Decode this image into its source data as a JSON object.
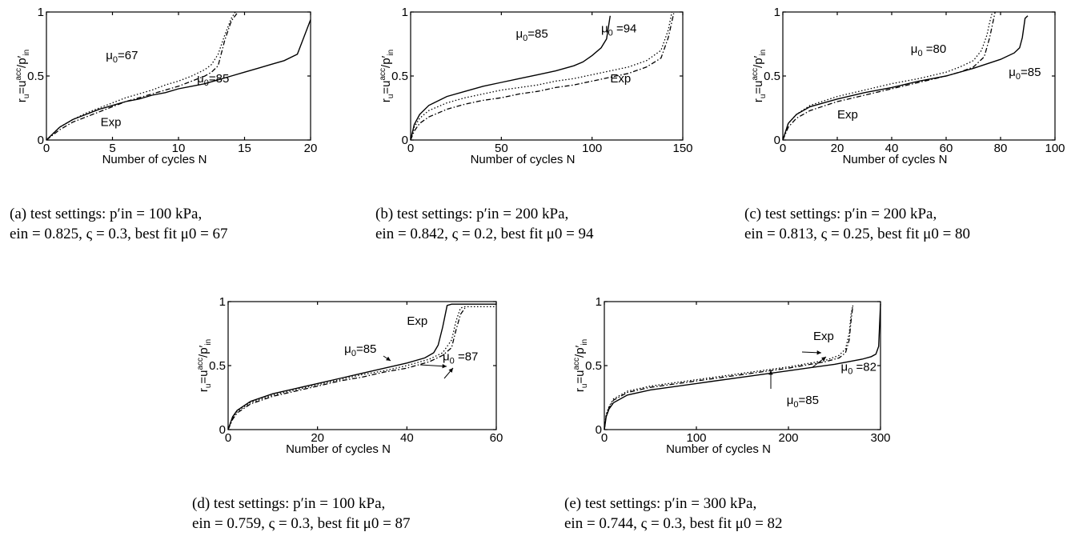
{
  "chart_data": [
    {
      "id": "a",
      "type": "line",
      "xlabel": "Number of cycles N",
      "ylabel": "r_u=u^acc/p'_in",
      "xlim": [
        0,
        20
      ],
      "ylim": [
        0,
        1
      ],
      "xticks": [
        0,
        5,
        10,
        15,
        20
      ],
      "yticks": [
        0,
        0.5,
        1
      ],
      "series": [
        {
          "style": "solid",
          "x": [
            0,
            1,
            2,
            3,
            4,
            5,
            6,
            7,
            8,
            9,
            10,
            11,
            12,
            13,
            14,
            15,
            16,
            17,
            18,
            19,
            20
          ],
          "y": [
            0,
            0.1,
            0.16,
            0.2,
            0.24,
            0.27,
            0.3,
            0.32,
            0.35,
            0.37,
            0.4,
            0.42,
            0.44,
            0.47,
            0.5,
            0.53,
            0.56,
            0.59,
            0.62,
            0.67,
            0.94
          ]
        },
        {
          "style": "dotted",
          "x": [
            0,
            1,
            2,
            3,
            4,
            5,
            6,
            7,
            8,
            9,
            10,
            11,
            12,
            12.5,
            13,
            13.5,
            14,
            14.3
          ],
          "y": [
            0,
            0.1,
            0.16,
            0.21,
            0.25,
            0.29,
            0.33,
            0.36,
            0.39,
            0.43,
            0.46,
            0.5,
            0.55,
            0.59,
            0.67,
            0.82,
            0.95,
            1.0
          ]
        },
        {
          "style": "dashdot",
          "x": [
            0,
            1,
            2,
            3,
            4,
            5,
            6,
            7,
            8,
            9,
            10,
            11,
            12,
            12.5,
            13,
            13.5,
            14,
            14.5
          ],
          "y": [
            0,
            0.08,
            0.14,
            0.18,
            0.22,
            0.26,
            0.3,
            0.33,
            0.36,
            0.39,
            0.42,
            0.46,
            0.5,
            0.53,
            0.58,
            0.78,
            0.93,
            1.0
          ]
        }
      ],
      "annotations": [
        {
          "text": "μ0=67",
          "x": 4.5,
          "y": 0.63
        },
        {
          "text": "μ0=85",
          "x": 11.4,
          "y": 0.45
        },
        {
          "text": "Exp",
          "x": 4.1,
          "y": 0.11
        }
      ]
    },
    {
      "id": "b",
      "type": "line",
      "xlabel": "Number of cycles N",
      "ylabel": "r_u=u^acc/p'_in",
      "xlim": [
        0,
        150
      ],
      "ylim": [
        0,
        1
      ],
      "xticks": [
        0,
        50,
        100,
        150
      ],
      "yticks": [
        0,
        0.5,
        1
      ],
      "series": [
        {
          "style": "solid",
          "x": [
            0,
            2,
            5,
            10,
            20,
            30,
            40,
            50,
            60,
            70,
            80,
            90,
            95,
            100,
            105,
            108,
            110
          ],
          "y": [
            0,
            0.12,
            0.2,
            0.27,
            0.34,
            0.38,
            0.42,
            0.45,
            0.48,
            0.51,
            0.54,
            0.58,
            0.61,
            0.66,
            0.72,
            0.79,
            0.97
          ]
        },
        {
          "style": "dotted",
          "x": [
            0,
            2,
            5,
            10,
            20,
            30,
            40,
            50,
            60,
            70,
            80,
            90,
            100,
            110,
            120,
            130,
            138,
            142,
            144
          ],
          "y": [
            0,
            0.1,
            0.17,
            0.23,
            0.29,
            0.33,
            0.36,
            0.39,
            0.41,
            0.43,
            0.46,
            0.48,
            0.51,
            0.54,
            0.57,
            0.62,
            0.7,
            0.86,
            1.0
          ]
        },
        {
          "style": "dashdot",
          "x": [
            0,
            2,
            5,
            10,
            20,
            30,
            40,
            50,
            60,
            70,
            80,
            90,
            100,
            110,
            120,
            130,
            138,
            142,
            145
          ],
          "y": [
            0,
            0.07,
            0.13,
            0.18,
            0.24,
            0.28,
            0.31,
            0.33,
            0.36,
            0.38,
            0.41,
            0.43,
            0.46,
            0.49,
            0.52,
            0.57,
            0.64,
            0.8,
            0.99
          ]
        }
      ],
      "annotations": [
        {
          "text": "μ0=85",
          "x": 58,
          "y": 0.8
        },
        {
          "text": "μ0 =94",
          "x": 105,
          "y": 0.84
        },
        {
          "text": "Exp",
          "x": 110,
          "y": 0.45
        }
      ]
    },
    {
      "id": "c",
      "type": "line",
      "xlabel": "Number of cycles N",
      "ylabel": "r_u=u^acc/p'_in",
      "xlim": [
        0,
        100
      ],
      "ylim": [
        0,
        1
      ],
      "xticks": [
        0,
        20,
        40,
        60,
        80,
        100
      ],
      "yticks": [
        0,
        0.5,
        1
      ],
      "series": [
        {
          "style": "solid",
          "x": [
            0,
            2,
            5,
            10,
            20,
            30,
            40,
            50,
            60,
            70,
            80,
            85,
            87,
            88,
            89,
            90
          ],
          "y": [
            0,
            0.13,
            0.2,
            0.26,
            0.32,
            0.37,
            0.41,
            0.46,
            0.5,
            0.56,
            0.63,
            0.68,
            0.72,
            0.8,
            0.95,
            0.97
          ]
        },
        {
          "style": "dotted",
          "x": [
            0,
            2,
            5,
            10,
            20,
            30,
            40,
            50,
            60,
            65,
            70,
            73,
            75,
            76,
            77
          ],
          "y": [
            0,
            0.13,
            0.2,
            0.27,
            0.34,
            0.39,
            0.44,
            0.48,
            0.53,
            0.57,
            0.62,
            0.7,
            0.82,
            0.92,
            1.0
          ]
        },
        {
          "style": "dashdot",
          "x": [
            0,
            2,
            5,
            10,
            20,
            30,
            40,
            50,
            60,
            65,
            70,
            74,
            76,
            77,
            78
          ],
          "y": [
            0,
            0.1,
            0.17,
            0.23,
            0.3,
            0.35,
            0.4,
            0.45,
            0.5,
            0.53,
            0.57,
            0.65,
            0.8,
            0.9,
            1.0
          ]
        }
      ],
      "annotations": [
        {
          "text": "μ0 =80",
          "x": 47,
          "y": 0.68
        },
        {
          "text": "μ0=85",
          "x": 83,
          "y": 0.5
        },
        {
          "text": "Exp",
          "x": 20,
          "y": 0.17
        }
      ]
    },
    {
      "id": "d",
      "type": "line",
      "xlabel": "Number of cycles N",
      "ylabel": "r_u=u^acc/p'_in",
      "xlim": [
        0,
        60
      ],
      "ylim": [
        0,
        1
      ],
      "xticks": [
        0,
        20,
        40,
        60
      ],
      "yticks": [
        0,
        0.5,
        1
      ],
      "series": [
        {
          "style": "solid",
          "x": [
            0,
            1,
            2,
            5,
            10,
            15,
            20,
            25,
            30,
            35,
            40,
            44,
            46,
            47,
            48,
            49,
            50,
            55,
            60
          ],
          "y": [
            0,
            0.1,
            0.15,
            0.22,
            0.28,
            0.32,
            0.36,
            0.4,
            0.44,
            0.48,
            0.52,
            0.56,
            0.6,
            0.66,
            0.8,
            0.97,
            0.98,
            0.98,
            0.98
          ]
        },
        {
          "style": "dotted",
          "x": [
            0,
            1,
            2,
            5,
            10,
            15,
            20,
            25,
            30,
            35,
            40,
            45,
            48,
            50,
            51,
            52,
            53,
            55,
            60
          ],
          "y": [
            0,
            0.09,
            0.14,
            0.21,
            0.27,
            0.31,
            0.35,
            0.39,
            0.43,
            0.46,
            0.5,
            0.55,
            0.6,
            0.7,
            0.85,
            0.95,
            0.96,
            0.96,
            0.96
          ]
        },
        {
          "style": "dashdot",
          "x": [
            0,
            1,
            2,
            5,
            10,
            15,
            20,
            25,
            30,
            35,
            40,
            45,
            48,
            50,
            51,
            52,
            53
          ],
          "y": [
            0,
            0.08,
            0.13,
            0.2,
            0.26,
            0.3,
            0.34,
            0.38,
            0.41,
            0.45,
            0.48,
            0.53,
            0.58,
            0.64,
            0.78,
            0.9,
            0.95
          ]
        }
      ],
      "annotations": [
        {
          "text": "μ0=85",
          "x": 26,
          "y": 0.6
        },
        {
          "text": "μ0 =87",
          "x": 48,
          "y": 0.54
        },
        {
          "text": "Exp",
          "x": 40,
          "y": 0.82
        }
      ]
    },
    {
      "id": "e",
      "type": "line",
      "xlabel": "Number of cycles N",
      "ylabel": "r_u=u^acc/p'_in",
      "xlim": [
        0,
        300
      ],
      "ylim": [
        0,
        1
      ],
      "xticks": [
        0,
        100,
        200,
        300
      ],
      "yticks": [
        0,
        0.5,
        1
      ],
      "series": [
        {
          "style": "solid",
          "x": [
            0,
            2,
            5,
            10,
            25,
            50,
            100,
            150,
            200,
            250,
            280,
            290,
            295,
            298,
            300
          ],
          "y": [
            0,
            0.1,
            0.16,
            0.21,
            0.27,
            0.31,
            0.36,
            0.41,
            0.46,
            0.51,
            0.55,
            0.57,
            0.59,
            0.65,
            0.98
          ]
        },
        {
          "style": "dotted",
          "x": [
            0,
            2,
            5,
            10,
            25,
            50,
            100,
            150,
            200,
            240,
            255,
            262,
            266,
            268,
            270
          ],
          "y": [
            0,
            0.12,
            0.18,
            0.24,
            0.3,
            0.34,
            0.39,
            0.44,
            0.49,
            0.54,
            0.58,
            0.63,
            0.75,
            0.9,
            0.97
          ]
        },
        {
          "style": "dashdot",
          "x": [
            0,
            2,
            5,
            10,
            25,
            50,
            100,
            150,
            200,
            240,
            255,
            262,
            266,
            268,
            270
          ],
          "y": [
            0,
            0.11,
            0.17,
            0.23,
            0.29,
            0.33,
            0.38,
            0.43,
            0.48,
            0.53,
            0.56,
            0.6,
            0.7,
            0.85,
            0.97
          ]
        }
      ],
      "annotations": [
        {
          "text": "μ0=85",
          "x": 198,
          "y": 0.2
        },
        {
          "text": "μ0 =82",
          "x": 257,
          "y": 0.46
        },
        {
          "text": "Exp",
          "x": 227,
          "y": 0.7
        }
      ]
    }
  ],
  "captions": [
    {
      "id": "a",
      "line1": "(a)  test  settings:  p′in  =  100  kPa,",
      "line2": "ein = 0.825, ς = 0.3, best fit μ0 = 67"
    },
    {
      "id": "b",
      "line1": "(b)  test  settings:  p′in  =  200  kPa,",
      "line2": "ein = 0.842, ς = 0.2, best fit μ0 = 94"
    },
    {
      "id": "c",
      "line1": "(c)  test  settings:  p′in  =  200  kPa,",
      "line2": "ein = 0.813, ς = 0.25, best fit μ0 = 80"
    },
    {
      "id": "d",
      "line1": "(d)  test  settings:  p′in  =  100  kPa,",
      "line2": "ein = 0.759, ς = 0.3, best fit μ0 = 87"
    },
    {
      "id": "e",
      "line1": "(e)  test  settings:  p′in  =  300  kPa,",
      "line2": "ein = 0.744, ς = 0.3, best fit μ0 = 82"
    }
  ]
}
